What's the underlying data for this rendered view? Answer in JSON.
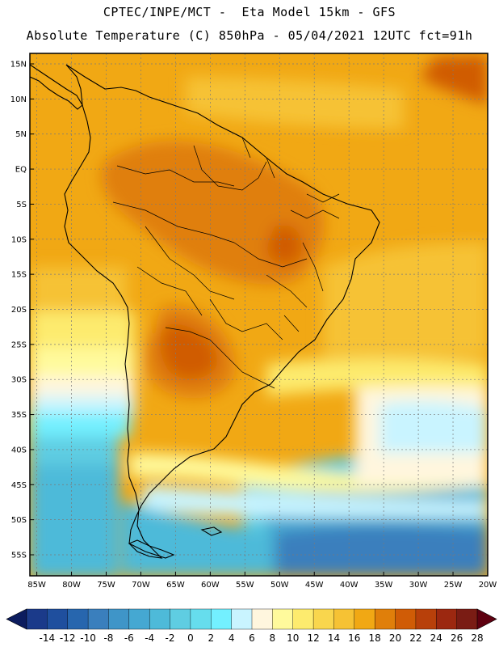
{
  "header": {
    "line1": "CPTEC/INPE/MCT -  Eta Model 15km - GFS",
    "line2": "Absolute Temperature (C) 850hPa - 05/04/2021 12UTC fct=91h"
  },
  "map": {
    "lat_labels": [
      "15N",
      "10N",
      "5N",
      "EQ",
      "5S",
      "10S",
      "15S",
      "20S",
      "25S",
      "30S",
      "35S",
      "40S",
      "45S",
      "50S",
      "55S"
    ],
    "lon_labels": [
      "85W",
      "80W",
      "75W",
      "70W",
      "65W",
      "60W",
      "55W",
      "50W",
      "45W",
      "40W",
      "35W",
      "30W",
      "25W",
      "20W"
    ],
    "lat_values": [
      15,
      10,
      5,
      0,
      -5,
      -10,
      -15,
      -20,
      -25,
      -30,
      -35,
      -40,
      -45,
      -50,
      -55
    ],
    "lon_values": [
      -85,
      -80,
      -75,
      -70,
      -65,
      -60,
      -55,
      -50,
      -45,
      -40,
      -35,
      -30,
      -25,
      -20
    ],
    "lat_range": [
      -58,
      16.5
    ],
    "lon_range": [
      -86,
      -20
    ]
  },
  "colorbar": {
    "labels": [
      "-14",
      "-12",
      "-10",
      "-8",
      "-6",
      "-4",
      "-2",
      "0",
      "2",
      "4",
      "6",
      "8",
      "10",
      "12",
      "14",
      "16",
      "18",
      "20",
      "22",
      "24",
      "26",
      "28"
    ],
    "colors": [
      "#1b3a8a",
      "#1f4f9e",
      "#2766ae",
      "#3a7fbd",
      "#3f95c8",
      "#45a8d2",
      "#4ebad9",
      "#5fcde2",
      "#66dded",
      "#73f0ff",
      "#c9f4ff",
      "#fff6de",
      "#fffa9c",
      "#fdeb6e",
      "#f9d64d",
      "#f6c234",
      "#f1a814",
      "#e07f0a",
      "#d05c06",
      "#b8400a",
      "#9c2810",
      "#7a1c14"
    ],
    "low_arrow_color": "#0c1c5e",
    "high_arrow_color": "#5e0010"
  }
}
